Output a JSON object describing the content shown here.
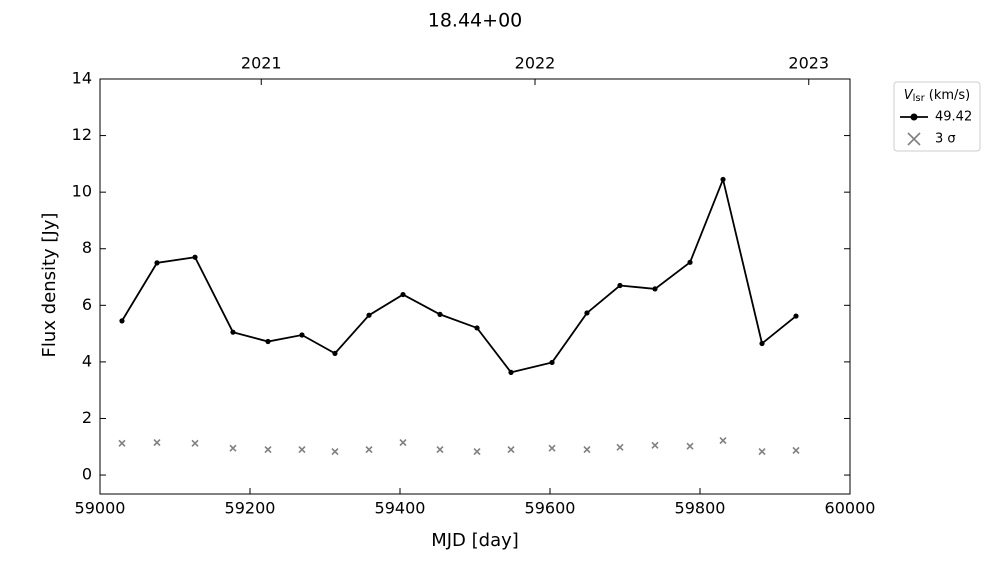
{
  "chart_data": {
    "type": "line",
    "title": "18.44+00",
    "xlabel": "MJD [day]",
    "ylabel": "Flux density [Jy]",
    "x": [
      59029.3,
      59076,
      59126.7,
      59177.3,
      59224,
      59269.3,
      59313.3,
      59358.7,
      59404,
      59453.3,
      59502.7,
      59548,
      59602.7,
      59649.3,
      59693.3,
      59740,
      59786.7,
      59830.7,
      59882.7,
      59928
    ],
    "series": [
      {
        "name": "49.42",
        "color": "#000000",
        "marker": "dot-line",
        "values": [
          5.45,
          7.5,
          7.7,
          5.05,
          4.72,
          4.95,
          4.3,
          5.65,
          6.38,
          5.68,
          5.2,
          3.63,
          3.98,
          5.73,
          6.7,
          6.58,
          7.52,
          10.45,
          4.65,
          5.62
        ]
      },
      {
        "name": "3 σ",
        "color": "#808080",
        "marker": "x",
        "values": [
          1.12,
          1.15,
          1.12,
          0.95,
          0.9,
          0.9,
          0.83,
          0.9,
          1.15,
          0.9,
          0.83,
          0.9,
          0.95,
          0.9,
          0.98,
          1.05,
          1.02,
          1.22,
          0.83,
          0.87
        ]
      }
    ],
    "legend_title": {
      "symbol": "V",
      "subscript": "lsr",
      "unit": "(km/s)"
    },
    "legend": "outside-upper-right",
    "xlim": [
      59000,
      60000
    ],
    "xticks": [
      59000,
      59200,
      59400,
      59600,
      59800,
      60000
    ],
    "x2ticks": [
      {
        "value": 59215,
        "label": "2021"
      },
      {
        "value": 59580,
        "label": "2022"
      },
      {
        "value": 59945,
        "label": "2023"
      }
    ],
    "ylim": [
      -0.67,
      14
    ],
    "yticks": [
      0,
      2,
      4,
      6,
      8,
      10,
      12,
      14
    ],
    "grid": false
  }
}
